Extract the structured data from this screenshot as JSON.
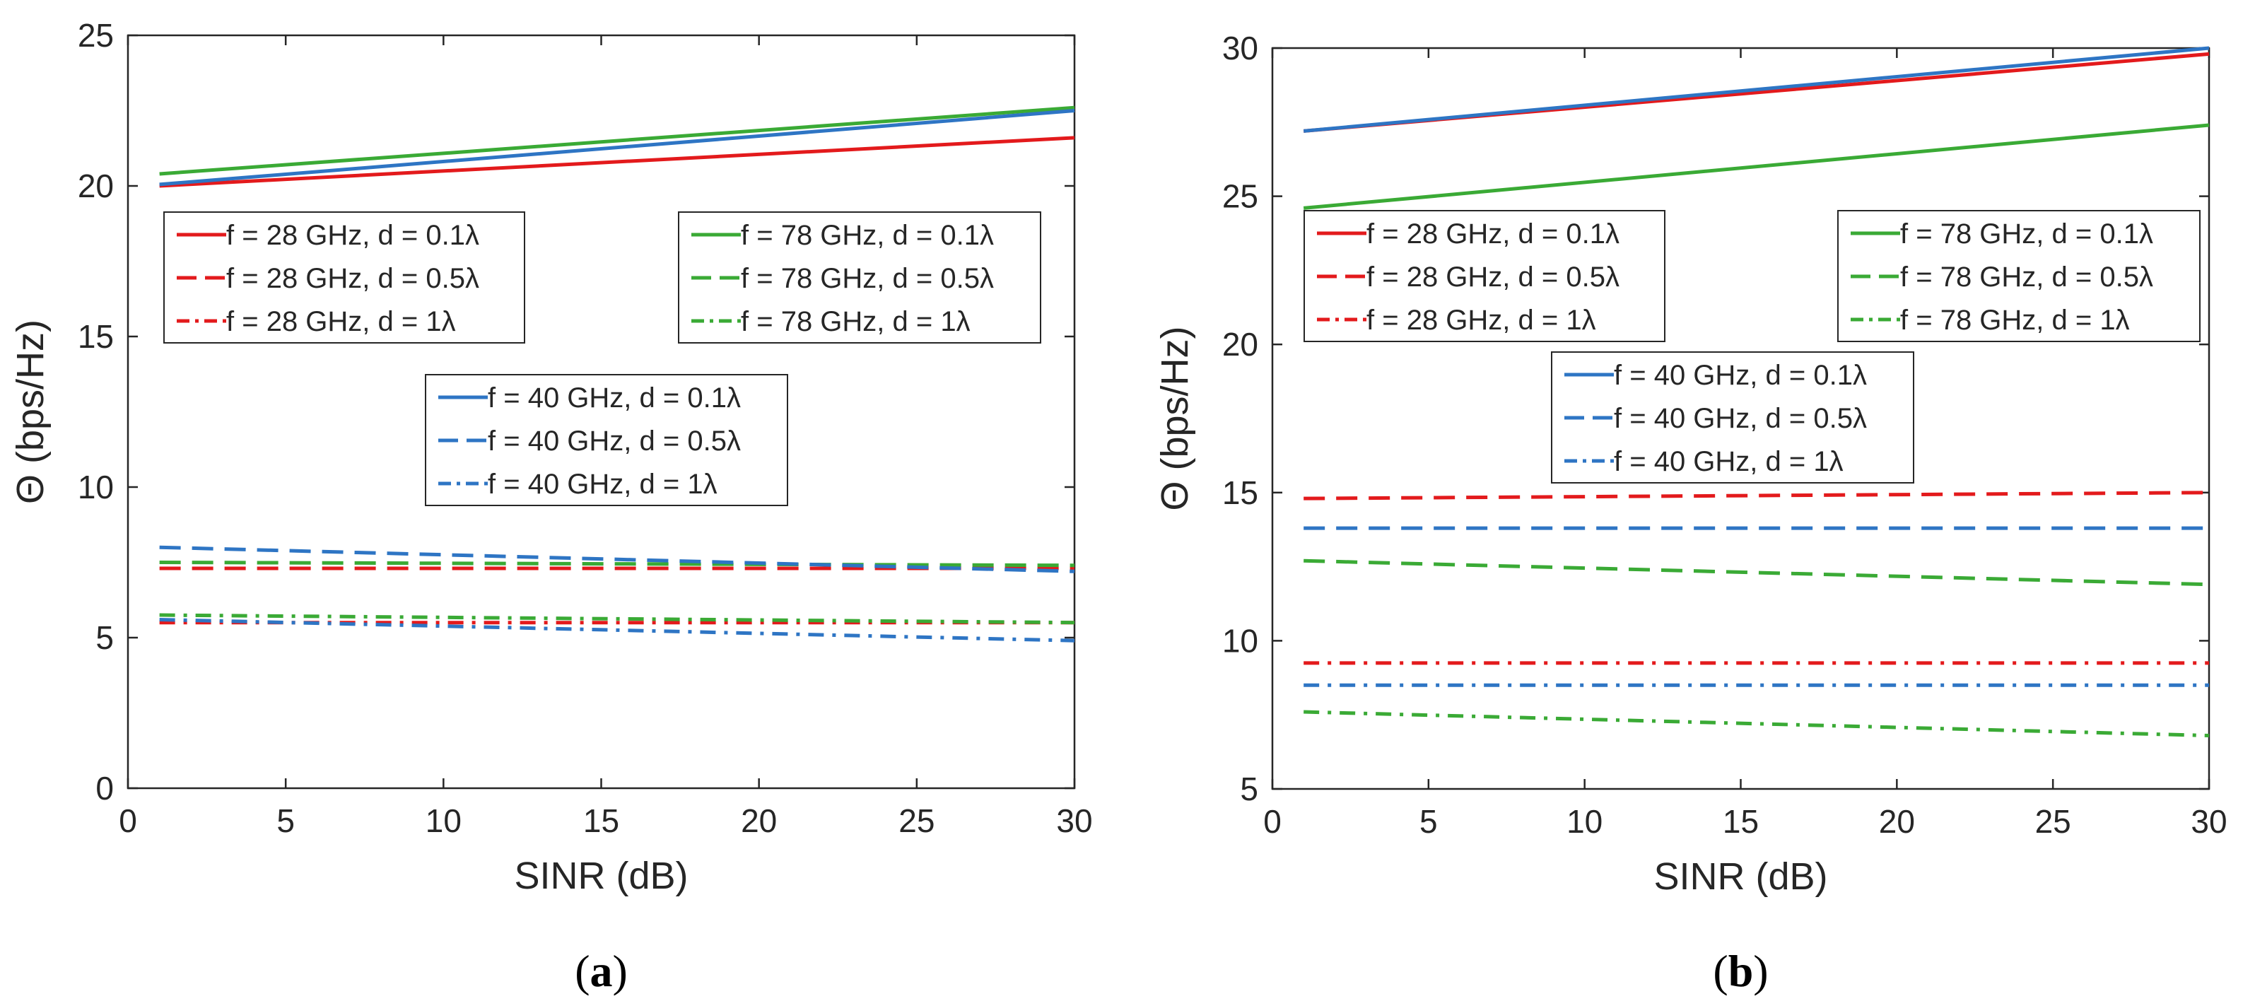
{
  "chart_data": [
    {
      "panel_label": "a",
      "type": "line",
      "xlabel": "SINR (dB)",
      "ylabel": "Θ (bps/Hz)",
      "xlim": [
        0,
        30
      ],
      "ylim": [
        0,
        25
      ],
      "xticks": [
        0,
        5,
        10,
        15,
        20,
        25,
        30
      ],
      "yticks": [
        0,
        5,
        10,
        15,
        20,
        25
      ],
      "grid": false,
      "x": [
        1,
        30
      ],
      "series": [
        {
          "name": "f = 28 GHz, d = 0.1λ",
          "color": "#e31a1c",
          "style": "solid",
          "values": [
            20.0,
            21.6
          ]
        },
        {
          "name": "f = 28 GHz, d = 0.5λ",
          "color": "#e31a1c",
          "style": "dash",
          "values": [
            7.3,
            7.3
          ]
        },
        {
          "name": "f = 28 GHz, d = 1λ",
          "color": "#e31a1c",
          "style": "dashdot",
          "values": [
            5.5,
            5.5
          ]
        },
        {
          "name": "f = 78 GHz, d = 0.1λ",
          "color": "#3aaa35",
          "style": "solid",
          "values": [
            20.4,
            22.6
          ]
        },
        {
          "name": "f = 78 GHz, d = 0.5λ",
          "color": "#3aaa35",
          "style": "dash",
          "values": [
            7.5,
            7.4
          ]
        },
        {
          "name": "f = 78 GHz, d = 1λ",
          "color": "#3aaa35",
          "style": "dashdot",
          "values": [
            5.75,
            5.5
          ]
        },
        {
          "name": "f = 40 GHz, d = 0.1λ",
          "color": "#2e75c4",
          "style": "solid",
          "values": [
            20.05,
            22.5
          ]
        },
        {
          "name": "f = 40 GHz, d = 0.5λ",
          "color": "#2e75c4",
          "style": "dash",
          "values": [
            8.0,
            7.2
          ]
        },
        {
          "name": "f = 40 GHz, d = 1λ",
          "color": "#2e75c4",
          "style": "dashdot",
          "values": [
            5.6,
            4.9
          ]
        }
      ],
      "legends": [
        {
          "position": "upper-left",
          "entries": [
            0,
            1,
            2
          ]
        },
        {
          "position": "upper-right",
          "entries": [
            3,
            4,
            5
          ]
        },
        {
          "position": "center",
          "entries": [
            6,
            7,
            8
          ]
        }
      ]
    },
    {
      "panel_label": "b",
      "type": "line",
      "xlabel": "SINR (dB)",
      "ylabel": "Θ (bps/Hz)",
      "xlim": [
        0,
        30
      ],
      "ylim": [
        5,
        30
      ],
      "xticks": [
        0,
        5,
        10,
        15,
        20,
        25,
        30
      ],
      "yticks": [
        5,
        10,
        15,
        20,
        25,
        30
      ],
      "grid": false,
      "x": [
        1,
        30
      ],
      "series": [
        {
          "name": "f = 28 GHz, d = 0.1λ",
          "color": "#e31a1c",
          "style": "solid",
          "values": [
            27.2,
            29.8
          ]
        },
        {
          "name": "f = 28 GHz, d = 0.5λ",
          "color": "#e31a1c",
          "style": "dash",
          "values": [
            14.8,
            15.0
          ]
        },
        {
          "name": "f = 28 GHz, d = 1λ",
          "color": "#e31a1c",
          "style": "dashdot",
          "values": [
            9.25,
            9.25
          ]
        },
        {
          "name": "f = 78 GHz, d = 0.1λ",
          "color": "#3aaa35",
          "style": "solid",
          "values": [
            24.6,
            27.4
          ]
        },
        {
          "name": "f = 78 GHz, d = 0.5λ",
          "color": "#3aaa35",
          "style": "dash",
          "values": [
            12.7,
            11.9
          ]
        },
        {
          "name": "f = 78 GHz, d = 1λ",
          "color": "#3aaa35",
          "style": "dashdot",
          "values": [
            7.6,
            6.8
          ]
        },
        {
          "name": "f = 40 GHz, d = 0.1λ",
          "color": "#2e75c4",
          "style": "solid",
          "values": [
            27.2,
            30.0
          ]
        },
        {
          "name": "f = 40 GHz, d = 0.5λ",
          "color": "#2e75c4",
          "style": "dash",
          "values": [
            13.8,
            13.8
          ]
        },
        {
          "name": "f = 40 GHz, d = 1λ",
          "color": "#2e75c4",
          "style": "dashdot",
          "values": [
            8.5,
            8.5
          ]
        }
      ],
      "legends": [
        {
          "position": "upper-left",
          "entries": [
            0,
            1,
            2
          ]
        },
        {
          "position": "upper-right",
          "entries": [
            3,
            4,
            5
          ]
        },
        {
          "position": "center",
          "entries": [
            6,
            7,
            8
          ]
        }
      ]
    }
  ]
}
